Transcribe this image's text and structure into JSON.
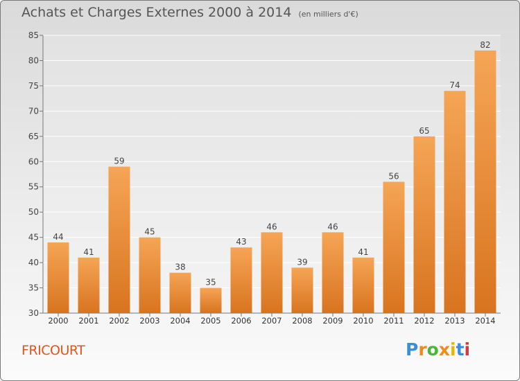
{
  "title": "Achats et Charges Externes 2000 à 2014",
  "subtitle": "(en milliers d'€)",
  "location": "FRICOURT",
  "brand": "Proxiti",
  "brand_colors": [
    "#3a8fd8",
    "#f08a1c",
    "#4db33d",
    "#f08a1c",
    "#e8b400",
    "#3a8fd8",
    "#d43a3a"
  ],
  "colors": {
    "bar_light": "#f5a555",
    "bar_dark": "#d87420",
    "accent": "#e2541a"
  },
  "chart_data": {
    "type": "bar",
    "title": "Achats et Charges Externes 2000 à 2014",
    "subtitle": "(en milliers d'€)",
    "xlabel": "",
    "ylabel": "",
    "categories": [
      "2000",
      "2001",
      "2002",
      "2003",
      "2004",
      "2005",
      "2006",
      "2007",
      "2008",
      "2009",
      "2010",
      "2011",
      "2012",
      "2013",
      "2014"
    ],
    "values": [
      44,
      41,
      59,
      45,
      38,
      35,
      43,
      46,
      39,
      46,
      41,
      56,
      65,
      74,
      82
    ],
    "ylim": [
      30,
      85
    ],
    "yticks": [
      30,
      35,
      40,
      45,
      50,
      55,
      60,
      65,
      70,
      75,
      80,
      85
    ],
    "grid": true,
    "data_labels": true
  }
}
